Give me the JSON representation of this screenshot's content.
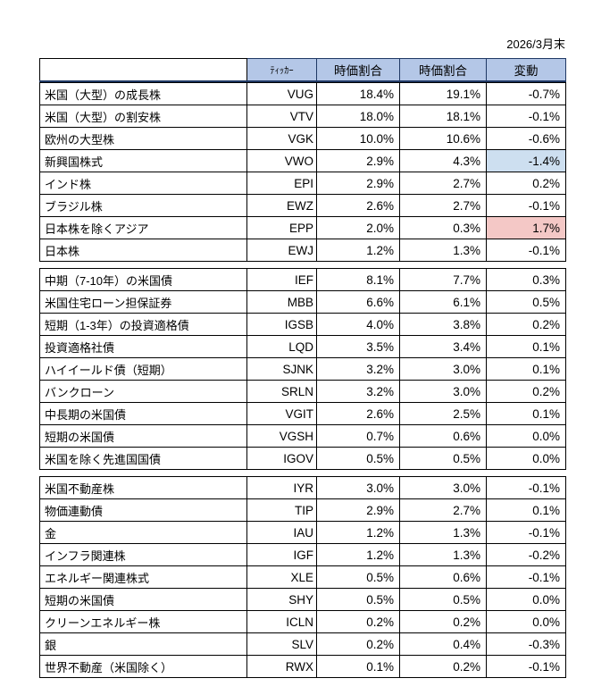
{
  "date_label": "2026/3月末",
  "table": {
    "headers": [
      "",
      "ﾃｨｯｶｰ",
      "時価割合",
      "時価割合",
      "変動"
    ],
    "sections": [
      {
        "group": "equities",
        "rows": [
          {
            "name": "米国（大型）の成長株",
            "ticker": "VUG",
            "weight_current": "18.4%",
            "weight_previous": "19.1%",
            "change": "-0.7%",
            "highlight": null
          },
          {
            "name": "米国（大型）の割安株",
            "ticker": "VTV",
            "weight_current": "18.0%",
            "weight_previous": "18.1%",
            "change": "-0.1%",
            "highlight": null
          },
          {
            "name": "欧州の大型株",
            "ticker": "VGK",
            "weight_current": "10.0%",
            "weight_previous": "10.6%",
            "change": "-0.6%",
            "highlight": null
          },
          {
            "name": "新興国株式",
            "ticker": "VWO",
            "weight_current": "2.9%",
            "weight_previous": "4.3%",
            "change": "-1.4%",
            "highlight": "blue"
          },
          {
            "name": "インド株",
            "ticker": "EPI",
            "weight_current": "2.9%",
            "weight_previous": "2.7%",
            "change": "0.2%",
            "highlight": null
          },
          {
            "name": "ブラジル株",
            "ticker": "EWZ",
            "weight_current": "2.6%",
            "weight_previous": "2.7%",
            "change": "-0.1%",
            "highlight": null
          },
          {
            "name": "日本株を除くアジア",
            "ticker": "EPP",
            "weight_current": "2.0%",
            "weight_previous": "0.3%",
            "change": "1.7%",
            "highlight": "pink"
          },
          {
            "name": "日本株",
            "ticker": "EWJ",
            "weight_current": "1.2%",
            "weight_previous": "1.3%",
            "change": "-0.1%",
            "highlight": null
          }
        ]
      },
      {
        "group": "bonds",
        "rows": [
          {
            "name": "中期（7-10年）の米国債",
            "ticker": "IEF",
            "weight_current": "8.1%",
            "weight_previous": "7.7%",
            "change": "0.3%",
            "highlight": null
          },
          {
            "name": "米国住宅ローン担保証券",
            "ticker": "MBB",
            "weight_current": "6.6%",
            "weight_previous": "6.1%",
            "change": "0.5%",
            "highlight": null
          },
          {
            "name": "短期（1-3年）の投資適格債",
            "ticker": "IGSB",
            "weight_current": "4.0%",
            "weight_previous": "3.8%",
            "change": "0.2%",
            "highlight": null
          },
          {
            "name": "投資適格社債",
            "ticker": "LQD",
            "weight_current": "3.5%",
            "weight_previous": "3.4%",
            "change": "0.1%",
            "highlight": null
          },
          {
            "name": "ハイイールド債（短期）",
            "ticker": "SJNK",
            "weight_current": "3.2%",
            "weight_previous": "3.0%",
            "change": "0.1%",
            "highlight": null
          },
          {
            "name": "バンクローン",
            "ticker": "SRLN",
            "weight_current": "3.2%",
            "weight_previous": "3.0%",
            "change": "0.2%",
            "highlight": null
          },
          {
            "name": "中長期の米国債",
            "ticker": "VGIT",
            "weight_current": "2.6%",
            "weight_previous": "2.5%",
            "change": "0.1%",
            "highlight": null
          },
          {
            "name": "短期の米国債",
            "ticker": "VGSH",
            "weight_current": "0.7%",
            "weight_previous": "0.6%",
            "change": "0.0%",
            "highlight": null
          },
          {
            "name": "米国を除く先進国国債",
            "ticker": "IGOV",
            "weight_current": "0.5%",
            "weight_previous": "0.5%",
            "change": "0.0%",
            "highlight": null
          }
        ]
      },
      {
        "group": "alternatives",
        "rows": [
          {
            "name": "米国不動産株",
            "ticker": "IYR",
            "weight_current": "3.0%",
            "weight_previous": "3.0%",
            "change": "-0.1%",
            "highlight": null
          },
          {
            "name": "物価連動債",
            "ticker": "TIP",
            "weight_current": "2.9%",
            "weight_previous": "2.7%",
            "change": "0.1%",
            "highlight": null
          },
          {
            "name": "金",
            "ticker": "IAU",
            "weight_current": "1.2%",
            "weight_previous": "1.3%",
            "change": "-0.1%",
            "highlight": null
          },
          {
            "name": "インフラ関連株",
            "ticker": "IGF",
            "weight_current": "1.2%",
            "weight_previous": "1.3%",
            "change": "-0.2%",
            "highlight": null
          },
          {
            "name": "エネルギー関連株式",
            "ticker": "XLE",
            "weight_current": "0.5%",
            "weight_previous": "0.6%",
            "change": "-0.1%",
            "highlight": null
          },
          {
            "name": "短期の米国債",
            "ticker": "SHY",
            "weight_current": "0.5%",
            "weight_previous": "0.5%",
            "change": "0.0%",
            "highlight": null
          },
          {
            "name": "クリーンエネルギー株",
            "ticker": "ICLN",
            "weight_current": "0.2%",
            "weight_previous": "0.2%",
            "change": "0.0%",
            "highlight": null
          },
          {
            "name": "銀",
            "ticker": "SLV",
            "weight_current": "0.2%",
            "weight_previous": "0.4%",
            "change": "-0.3%",
            "highlight": null
          },
          {
            "name": "世界不動産（米国除く）",
            "ticker": "RWX",
            "weight_current": "0.1%",
            "weight_previous": "0.2%",
            "change": "-0.1%",
            "highlight": null
          }
        ]
      }
    ]
  },
  "colors": {
    "header_bg": "#B4C7E7",
    "header_border": "#1F3864",
    "highlight_blue": "#CDDFF0",
    "highlight_pink": "#F4C8C6",
    "border": "#000000"
  }
}
